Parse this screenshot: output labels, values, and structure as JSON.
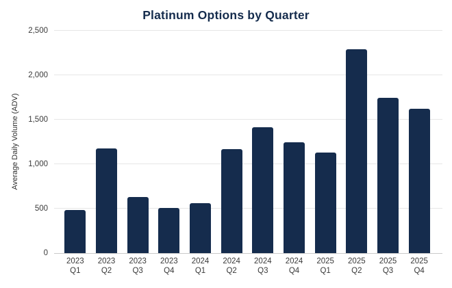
{
  "chart_data": {
    "type": "bar",
    "title": "Platinum Options by Quarter",
    "xlabel": "",
    "ylabel": "Average Daily Volume (ADV)",
    "categories": [
      "2023 Q1",
      "2023 Q2",
      "2023 Q3",
      "2023 Q4",
      "2024 Q1",
      "2024 Q2",
      "2024 Q3",
      "2024 Q4",
      "2025 Q1",
      "2025 Q2",
      "2025 Q3",
      "2025 Q4"
    ],
    "values": [
      485,
      1175,
      630,
      505,
      560,
      1170,
      1415,
      1245,
      1130,
      2295,
      1750,
      1620
    ],
    "ylim": [
      0,
      2500
    ],
    "yticks": [
      0,
      500,
      1000,
      1500,
      2000,
      2500
    ],
    "ytick_labels": [
      "0",
      "500",
      "1,000",
      "1,500",
      "2,000",
      "2,500"
    ],
    "grid": true,
    "legend": "none",
    "bar_color": "#152C4D",
    "gridline_color": "#e6e6e6",
    "axis_line_color": "#c9c9c9",
    "title_color": "#152C4D",
    "tick_text_color": "#3a3a3a",
    "background": "#ffffff"
  }
}
